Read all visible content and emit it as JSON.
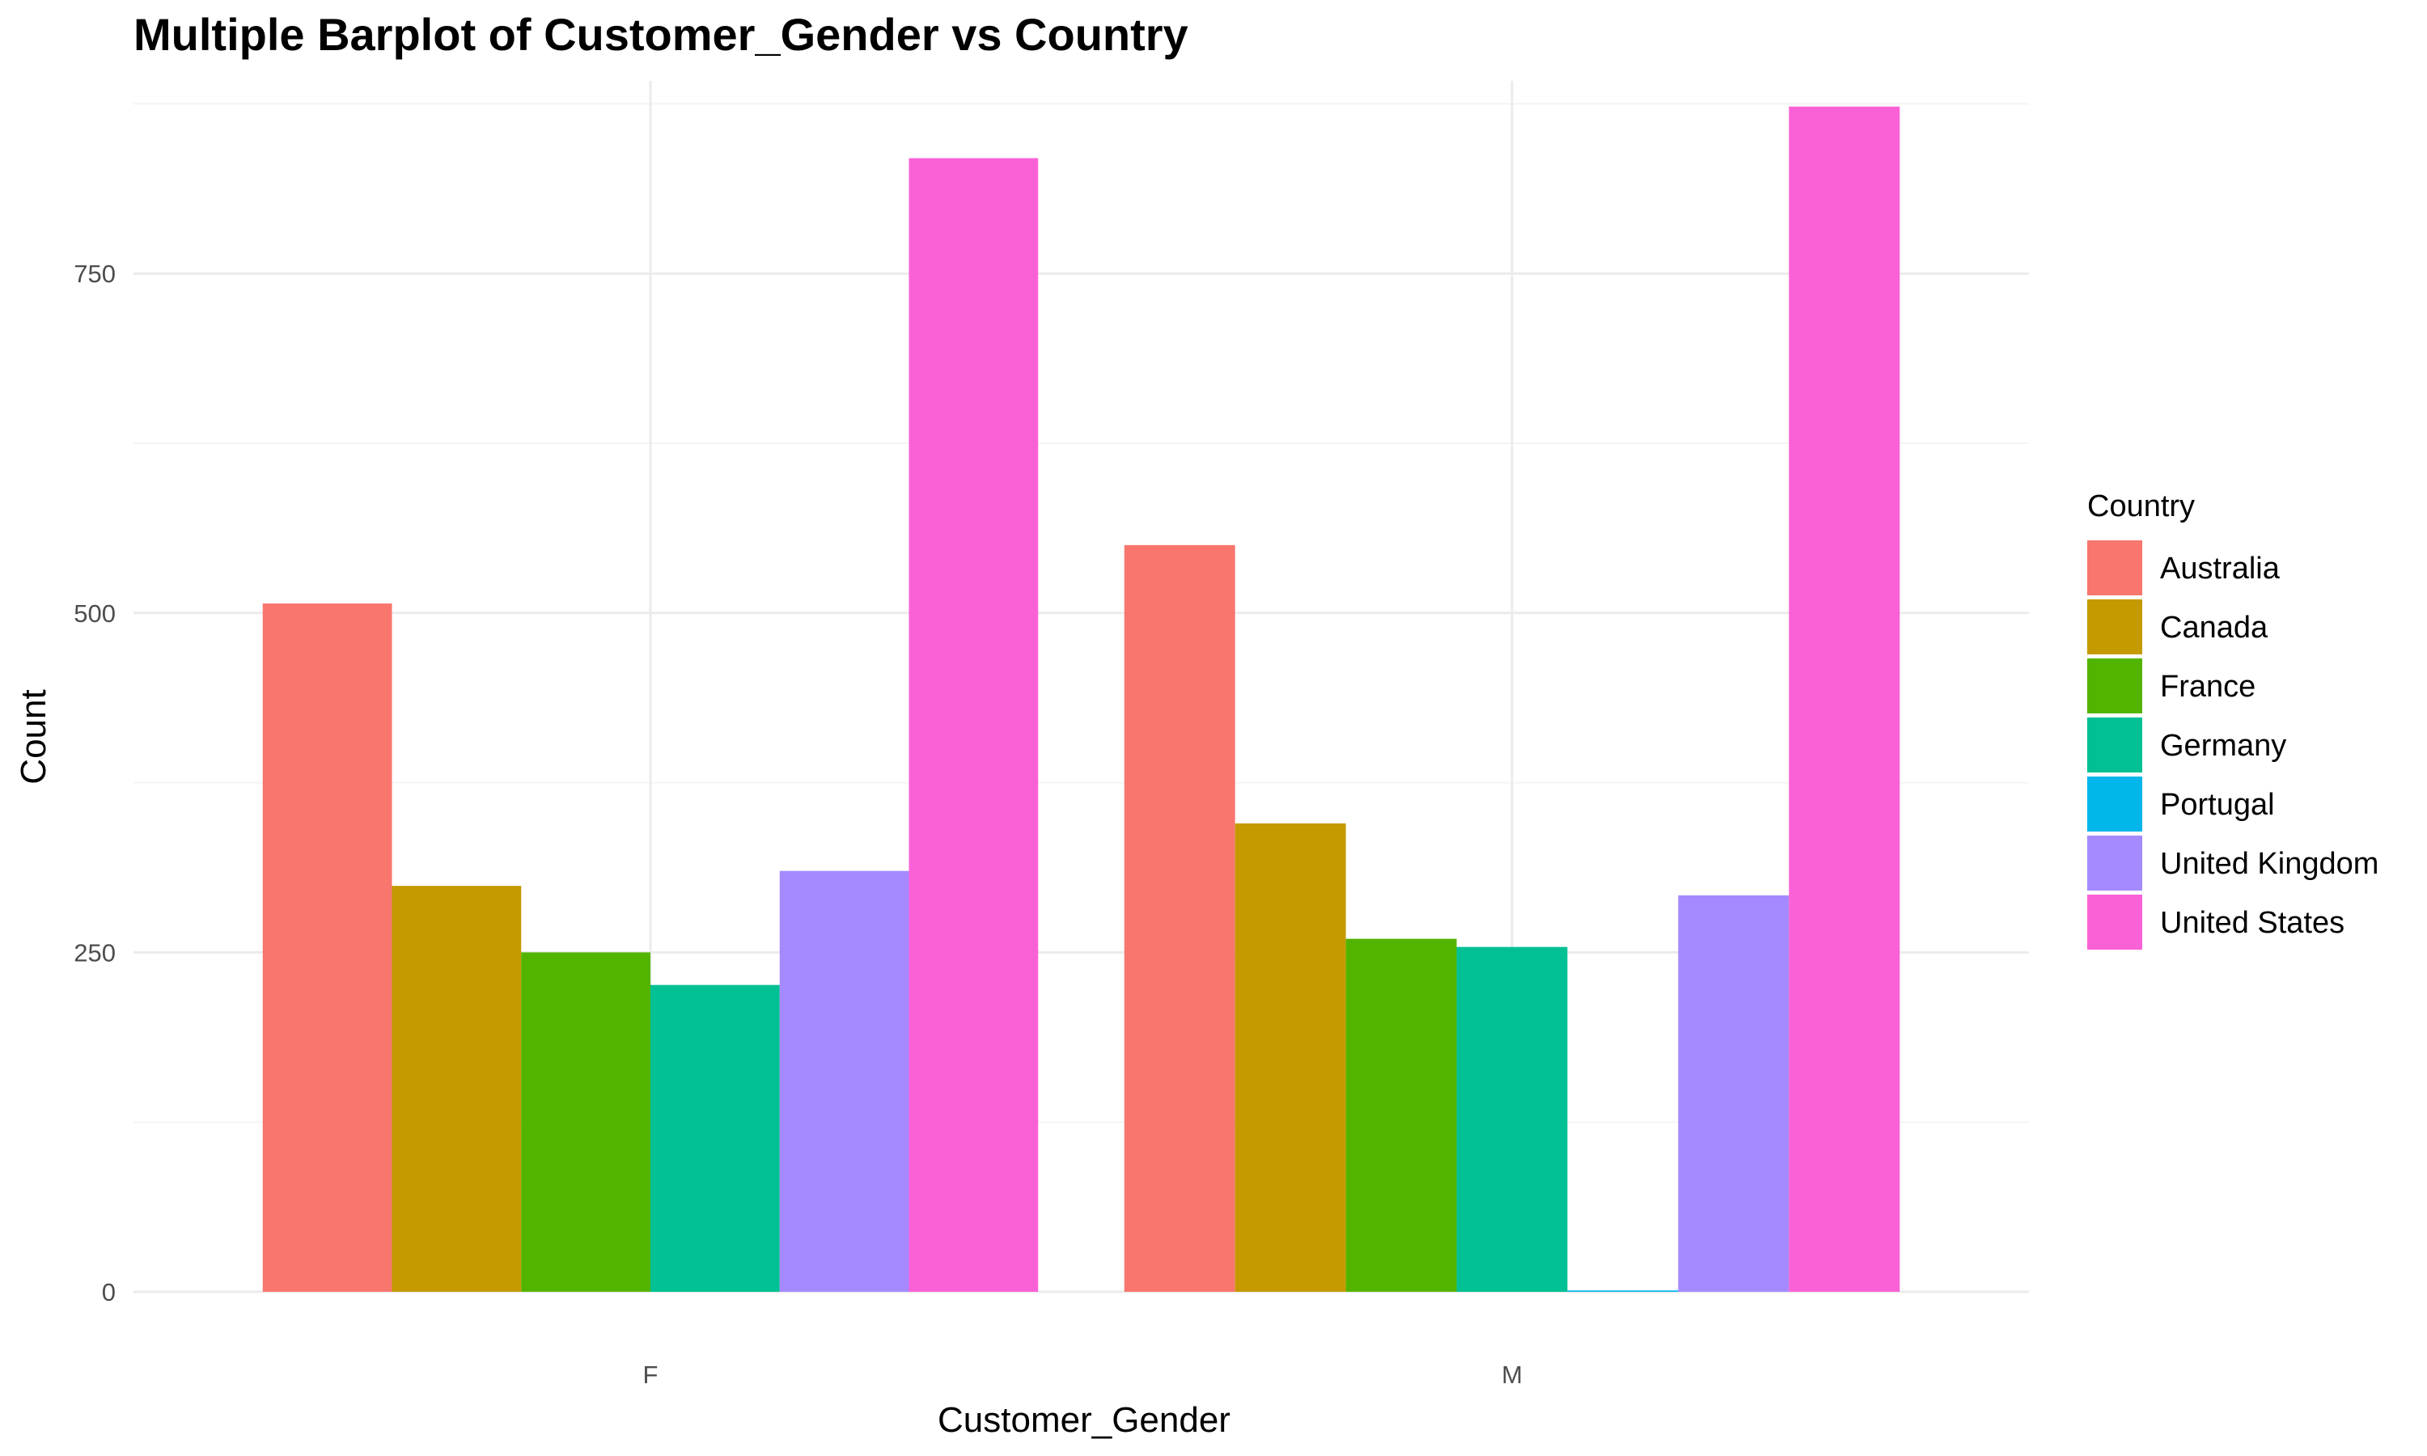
{
  "chart_data": {
    "type": "bar",
    "title": "Multiple Barplot of Customer_Gender vs Country",
    "xlabel": "Customer_Gender",
    "ylabel": "Count",
    "categories": [
      "F",
      "M"
    ],
    "ylim": [
      0,
      880
    ],
    "yticks": [
      0,
      250,
      500,
      750
    ],
    "yticks_text": [
      "0",
      "250",
      "500",
      "750"
    ],
    "grid": true,
    "legend_title": "Country",
    "legend_position": "right",
    "series": [
      {
        "name": "Australia",
        "color": "#F8766D",
        "values": [
          507,
          550
        ]
      },
      {
        "name": "Canada",
        "color": "#C49A00",
        "values": [
          299,
          345
        ]
      },
      {
        "name": "France",
        "color": "#53B400",
        "values": [
          250,
          260
        ]
      },
      {
        "name": "Germany",
        "color": "#00C094",
        "values": [
          226,
          254
        ]
      },
      {
        "name": "Portugal",
        "color": "#00B6EB",
        "values": [
          0,
          1
        ]
      },
      {
        "name": "United Kingdom",
        "color": "#A58AFF",
        "values": [
          310,
          292
        ]
      },
      {
        "name": "United States",
        "color": "#FB61D7",
        "values": [
          835,
          873
        ]
      }
    ]
  }
}
